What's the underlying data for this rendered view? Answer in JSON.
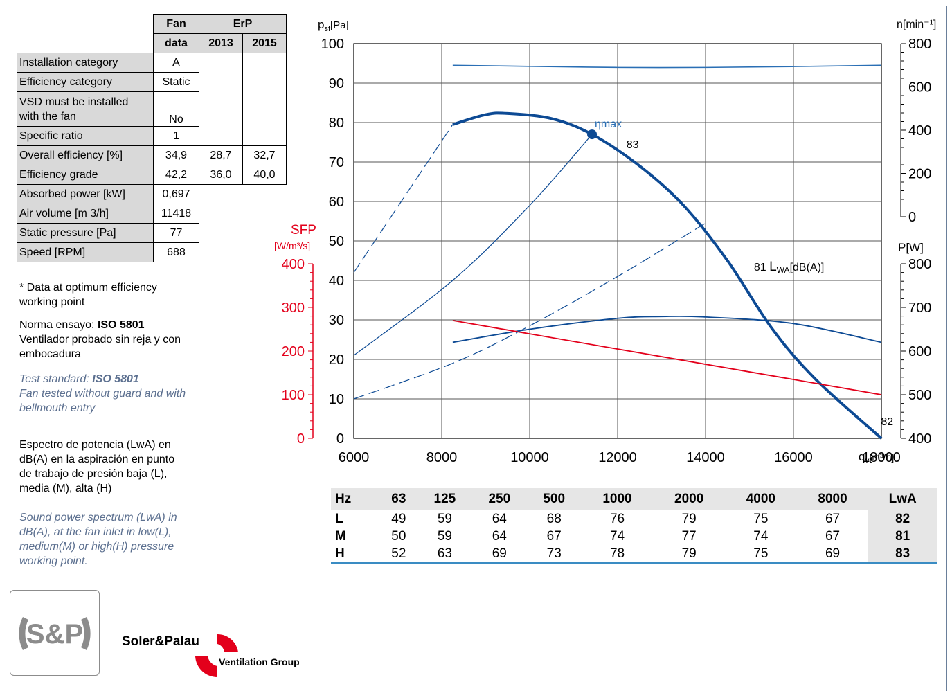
{
  "fan_table": {
    "head": {
      "fan": "Fan",
      "data": "data",
      "erp": "ErP",
      "y2013": "2013",
      "y2015": "2015"
    },
    "rows": [
      {
        "label": "Installation category",
        "fan": "A",
        "e2013": "",
        "e2015": ""
      },
      {
        "label": "Efficiency category",
        "fan": "Static",
        "e2013": "",
        "e2015": ""
      },
      {
        "label": "VSD must be installed with the fan",
        "fan": "No",
        "e2013": "",
        "e2015": ""
      },
      {
        "label": "Specific ratio",
        "fan": "1",
        "e2013": "",
        "e2015": ""
      },
      {
        "label": "Overall efficiency [%]",
        "fan": "34,9",
        "e2013": "28,7",
        "e2015": "32,7"
      },
      {
        "label": "Efficiency grade",
        "fan": "42,2",
        "e2013": "36,0",
        "e2015": "40,0"
      },
      {
        "label": "Absorbed power [kW]",
        "fan": "0,697"
      },
      {
        "label": "Air volume [m 3/h]",
        "fan": "11418"
      },
      {
        "label": "Static pressure [Pa]",
        "fan": "77"
      },
      {
        "label": "Speed [RPM]",
        "fan": "688"
      }
    ]
  },
  "notes": {
    "optimum": "* Data at optimum efficiency working point",
    "norma_prefix": "Norma ensayo: ",
    "norma_bold": "ISO 5801",
    "norma_rest": "Ventilador probado sin reja y con embocadura",
    "test_prefix": "Test standard: ",
    "test_bold": "ISO 5801",
    "test_rest": "Fan tested without guard and with bellmouth entry",
    "espectro": "Espectro de potencia (LwA) en dB(A) en la aspiración en punto de trabajo de presión baja (L), media (M), alta (H)",
    "sound": "Sound power spectrum (LwA) in dB(A), at the fan inlet in low(L), medium(M) or high(H) pressure working point."
  },
  "sound_table": {
    "headers": [
      "Hz",
      "63",
      "125",
      "250",
      "500",
      "1000",
      "2000",
      "4000",
      "8000",
      "LwA"
    ],
    "rows": [
      [
        "L",
        "49",
        "59",
        "64",
        "68",
        "76",
        "79",
        "75",
        "67",
        "82"
      ],
      [
        "M",
        "50",
        "59",
        "64",
        "67",
        "74",
        "77",
        "74",
        "67",
        "81"
      ],
      [
        "H",
        "52",
        "63",
        "69",
        "73",
        "78",
        "79",
        "75",
        "69",
        "83"
      ]
    ]
  },
  "brand": {
    "name": "Soler&Palau",
    "group": "Ventilation Group",
    "logo_text": "S&P"
  },
  "colors": {
    "dark_blue": "#0d4a94",
    "mid_blue": "#2a6fb5",
    "red": "#e3001b",
    "grid": "#555555"
  },
  "chart_data": {
    "type": "line",
    "axes": {
      "x": {
        "label_main": "q",
        "label_sub": "v",
        "label_unit": "[m³/h]",
        "range": [
          6000,
          18000
        ],
        "ticks": [
          6000,
          8000,
          10000,
          12000,
          14000,
          16000,
          18000
        ]
      },
      "y_pressure": {
        "label_main": "p",
        "label_sub": "sf",
        "label_unit": "[Pa]",
        "range": [
          0,
          100
        ],
        "ticks": [
          0,
          10,
          20,
          30,
          40,
          50,
          60,
          70,
          80,
          90,
          100
        ]
      },
      "y_speed": {
        "label": "n[min⁻¹]",
        "range": [
          0,
          800
        ],
        "ticks": [
          0,
          200,
          400,
          600,
          800
        ]
      },
      "y_power": {
        "label": "P[W]",
        "range": [
          400,
          800
        ],
        "ticks": [
          400,
          500,
          600,
          700,
          800
        ]
      },
      "y_sfp": {
        "label_top": "SFP",
        "label_unit": "[W/m³/s]",
        "range": [
          0,
          400
        ],
        "ticks": [
          0,
          100,
          200,
          300,
          400
        ]
      }
    },
    "series": [
      {
        "role": "pressure",
        "axis": "y_pressure",
        "x": [
          8250,
          9000,
          9500,
          10500,
          11418,
          12500,
          13500,
          14500,
          15500,
          16500,
          18000
        ],
        "y": [
          79.5,
          82,
          82.3,
          81,
          77,
          69,
          59,
          45,
          28,
          15,
          0
        ]
      },
      {
        "role": "speed",
        "axis": "y_speed",
        "x": [
          8250,
          10000,
          12000,
          14000,
          16000,
          18000
        ],
        "y": [
          700,
          695,
          690,
          690,
          694,
          700
        ]
      },
      {
        "role": "power",
        "axis": "y_power",
        "x": [
          8250,
          10000,
          12000,
          13000,
          14000,
          16000,
          18000
        ],
        "y": [
          620,
          650,
          675,
          679,
          678,
          663,
          620
        ]
      },
      {
        "role": "sfp",
        "axis": "y_sfp",
        "x": [
          8250,
          18000
        ],
        "y": [
          270,
          100
        ]
      },
      {
        "role": "system-curve-low",
        "axis": "y_pressure",
        "style": "dashed",
        "x": [
          6000,
          8250,
          10000,
          12000,
          14000
        ],
        "y": [
          10,
          19,
          28.5,
          41,
          54.5
        ]
      },
      {
        "role": "system-curve-mid",
        "axis": "y_pressure",
        "x": [
          6000,
          8250,
          10000,
          11418
        ],
        "y": [
          21,
          40,
          59,
          77
        ]
      },
      {
        "role": "system-curve-high",
        "axis": "y_pressure",
        "style": "dashed",
        "x": [
          6000,
          8250
        ],
        "y": [
          42,
          79.5
        ]
      }
    ],
    "annotations": {
      "eta_max": {
        "text": "ηmax",
        "x": 11418,
        "y": 77
      },
      "lwa_h": {
        "text": "83",
        "x": 12200,
        "y": 73.5
      },
      "lwa_m": {
        "text": "81",
        "x": 15100,
        "y": 42.5
      },
      "lwa_label_main": "L",
      "lwa_label_sub": "WA",
      "lwa_label_unit": "[dB(A)]",
      "lwa_l": {
        "text": "82",
        "x": 18100,
        "y": 4
      }
    }
  }
}
